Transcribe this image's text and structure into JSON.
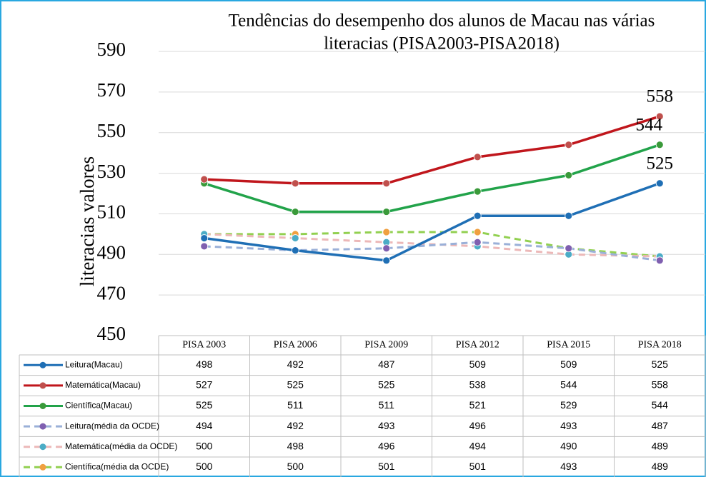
{
  "chart_data": {
    "type": "line",
    "title": "Tendências do desempenho dos alunos de Macau nas várias",
    "title_line2": "literacias (PISA2003-PISA2018)",
    "y_label": "literacias valores",
    "categories": [
      "PISA 2003",
      "PISA 2006",
      "PISA 2009",
      "PISA 2012",
      "PISA 2015",
      "PISA 2018"
    ],
    "ylim": [
      450,
      590
    ],
    "yticks": [
      450,
      470,
      490,
      510,
      530,
      550,
      570,
      590
    ],
    "grid": true,
    "series": [
      {
        "name": "Leitura(Macau)",
        "color": "#1f6fb5",
        "marker_color": "#1f6fb5",
        "dashed": false,
        "values": [
          498,
          492,
          487,
          509,
          509,
          525
        ]
      },
      {
        "name": "Matemática(Macau)",
        "color": "#c0161c",
        "marker_color": "#c0504d",
        "dashed": false,
        "values": [
          527,
          525,
          525,
          538,
          544,
          558
        ]
      },
      {
        "name": "Científica(Macau)",
        "color": "#22a34a",
        "marker_color": "#3a9a3a",
        "dashed": false,
        "values": [
          525,
          511,
          511,
          521,
          529,
          544
        ]
      },
      {
        "name": "Leitura(média da OCDE)",
        "color": "#9ab0d8",
        "marker_color": "#7f5fb0",
        "dashed": true,
        "values": [
          494,
          492,
          493,
          496,
          493,
          487
        ]
      },
      {
        "name": "Matemática(média da OCDE)",
        "color": "#ecb8b8",
        "marker_color": "#4bacc6",
        "dashed": true,
        "values": [
          500,
          498,
          496,
          494,
          490,
          489
        ]
      },
      {
        "name": "Científica(média da OCDE)",
        "color": "#92d050",
        "marker_color": "#f0a040",
        "dashed": true,
        "values": [
          500,
          500,
          501,
          501,
          493,
          489
        ]
      }
    ],
    "end_labels": [
      1,
      2,
      0
    ]
  }
}
